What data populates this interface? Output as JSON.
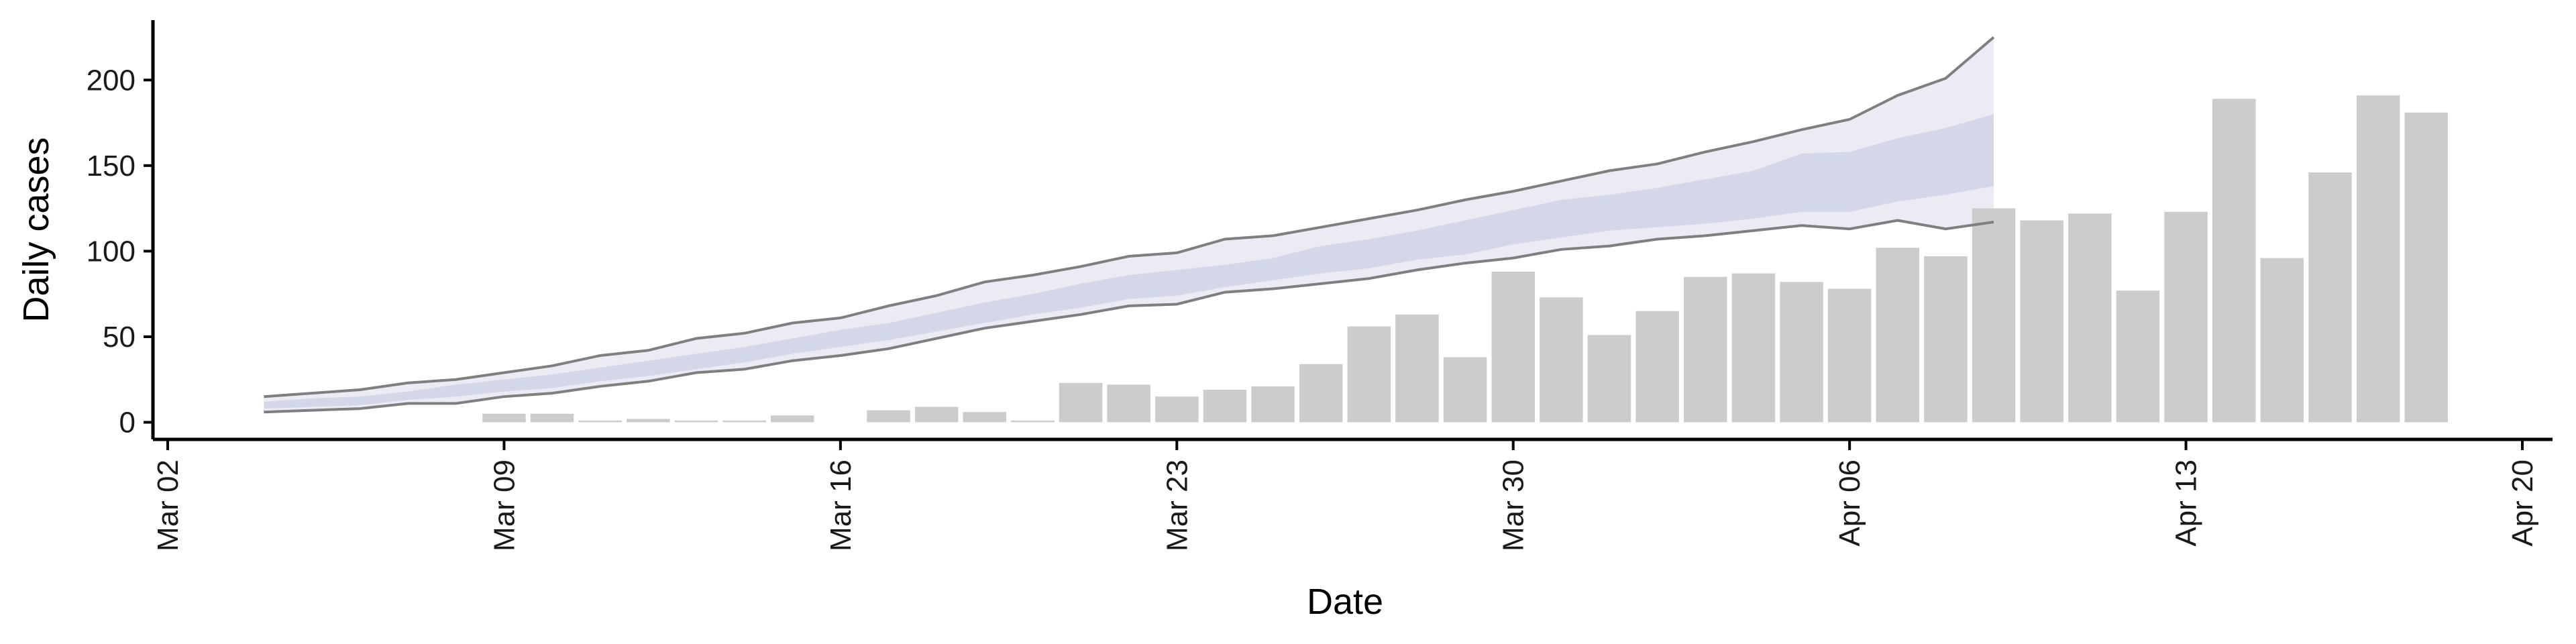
{
  "chart_data": {
    "type": "bar",
    "title": "",
    "xlabel": "Date",
    "ylabel": "Daily cases",
    "x_range": [
      "2020-03-02",
      "2020-04-20"
    ],
    "ylim": [
      -10,
      235
    ],
    "y_ticks": [
      0,
      50,
      100,
      150,
      200
    ],
    "x_ticks": [
      {
        "date": "2020-03-02",
        "label": "Mar 02"
      },
      {
        "date": "2020-03-09",
        "label": "Mar 09"
      },
      {
        "date": "2020-03-16",
        "label": "Mar 16"
      },
      {
        "date": "2020-03-23",
        "label": "Mar 23"
      },
      {
        "date": "2020-03-30",
        "label": "Mar 30"
      },
      {
        "date": "2020-04-06",
        "label": "Apr 06"
      },
      {
        "date": "2020-04-13",
        "label": "Apr 13"
      },
      {
        "date": "2020-04-20",
        "label": "Apr 20"
      }
    ],
    "grid": false,
    "legend": "none",
    "colors": {
      "bars": "#cccccc",
      "band_outer": "#e7e9f1",
      "band_inner": "#cfd4e4",
      "bound_lines": "#7f7f7f",
      "axis": "#000000"
    },
    "bars": [
      {
        "date": "2020-03-09",
        "value": 5
      },
      {
        "date": "2020-03-10",
        "value": 5
      },
      {
        "date": "2020-03-11",
        "value": 1
      },
      {
        "date": "2020-03-12",
        "value": 2
      },
      {
        "date": "2020-03-13",
        "value": 1
      },
      {
        "date": "2020-03-14",
        "value": 1
      },
      {
        "date": "2020-03-15",
        "value": 4
      },
      {
        "date": "2020-03-17",
        "value": 7
      },
      {
        "date": "2020-03-18",
        "value": 9
      },
      {
        "date": "2020-03-19",
        "value": 6
      },
      {
        "date": "2020-03-20",
        "value": 1
      },
      {
        "date": "2020-03-21",
        "value": 23
      },
      {
        "date": "2020-03-22",
        "value": 22
      },
      {
        "date": "2020-03-23",
        "value": 15
      },
      {
        "date": "2020-03-24",
        "value": 19
      },
      {
        "date": "2020-03-25",
        "value": 21
      },
      {
        "date": "2020-03-26",
        "value": 34
      },
      {
        "date": "2020-03-27",
        "value": 56
      },
      {
        "date": "2020-03-28",
        "value": 63
      },
      {
        "date": "2020-03-29",
        "value": 38
      },
      {
        "date": "2020-03-30",
        "value": 88
      },
      {
        "date": "2020-03-31",
        "value": 73
      },
      {
        "date": "2020-04-01",
        "value": 51
      },
      {
        "date": "2020-04-02",
        "value": 65
      },
      {
        "date": "2020-04-03",
        "value": 85
      },
      {
        "date": "2020-04-04",
        "value": 87
      },
      {
        "date": "2020-04-05",
        "value": 82
      },
      {
        "date": "2020-04-06",
        "value": 78
      },
      {
        "date": "2020-04-07",
        "value": 102
      },
      {
        "date": "2020-04-08",
        "value": 97
      },
      {
        "date": "2020-04-09",
        "value": 125
      },
      {
        "date": "2020-04-10",
        "value": 118
      },
      {
        "date": "2020-04-11",
        "value": 122
      },
      {
        "date": "2020-04-12",
        "value": 77
      },
      {
        "date": "2020-04-13",
        "value": 123
      },
      {
        "date": "2020-04-14",
        "value": 189
      },
      {
        "date": "2020-04-15",
        "value": 96
      },
      {
        "date": "2020-04-16",
        "value": 146
      },
      {
        "date": "2020-04-17",
        "value": 191
      },
      {
        "date": "2020-04-18",
        "value": 181
      }
    ],
    "estimate": {
      "dates": [
        "2020-03-04",
        "2020-03-05",
        "2020-03-06",
        "2020-03-07",
        "2020-03-08",
        "2020-03-09",
        "2020-03-10",
        "2020-03-11",
        "2020-03-12",
        "2020-03-13",
        "2020-03-14",
        "2020-03-15",
        "2020-03-16",
        "2020-03-17",
        "2020-03-18",
        "2020-03-19",
        "2020-03-20",
        "2020-03-21",
        "2020-03-22",
        "2020-03-23",
        "2020-03-24",
        "2020-03-25",
        "2020-03-26",
        "2020-03-27",
        "2020-03-28",
        "2020-03-29",
        "2020-03-30",
        "2020-03-31",
        "2020-04-01",
        "2020-04-02",
        "2020-04-03",
        "2020-04-04",
        "2020-04-05",
        "2020-04-06",
        "2020-04-07",
        "2020-04-08",
        "2020-04-09"
      ],
      "lower": [
        6,
        7,
        8,
        11,
        11,
        15,
        17,
        21,
        24,
        29,
        31,
        36,
        39,
        43,
        49,
        55,
        59,
        63,
        68,
        69,
        76,
        78,
        81,
        84,
        89,
        93,
        96,
        101,
        103,
        107,
        109,
        112,
        115,
        113,
        118,
        113,
        117
      ],
      "upper": [
        15,
        17,
        19,
        23,
        25,
        29,
        33,
        39,
        42,
        49,
        52,
        58,
        61,
        68,
        74,
        82,
        86,
        91,
        97,
        99,
        107,
        109,
        114,
        119,
        124,
        130,
        135,
        141,
        147,
        151,
        158,
        164,
        171,
        177,
        191,
        201,
        225
      ],
      "inner_lower": [
        8,
        9,
        10,
        13,
        15,
        18,
        20,
        24,
        27,
        31,
        35,
        40,
        44,
        48,
        53,
        58,
        63,
        67,
        72,
        74,
        79,
        83,
        87,
        90,
        95,
        98,
        104,
        108,
        112,
        114,
        116,
        119,
        123,
        123,
        129,
        133,
        138
      ],
      "inner_upper": [
        12,
        14,
        15,
        18,
        22,
        25,
        28,
        32,
        36,
        40,
        44,
        49,
        54,
        58,
        64,
        70,
        75,
        81,
        86,
        89,
        92,
        96,
        103,
        107,
        112,
        118,
        124,
        130,
        133,
        137,
        142,
        147,
        157,
        158,
        166,
        172,
        180
      ]
    }
  }
}
